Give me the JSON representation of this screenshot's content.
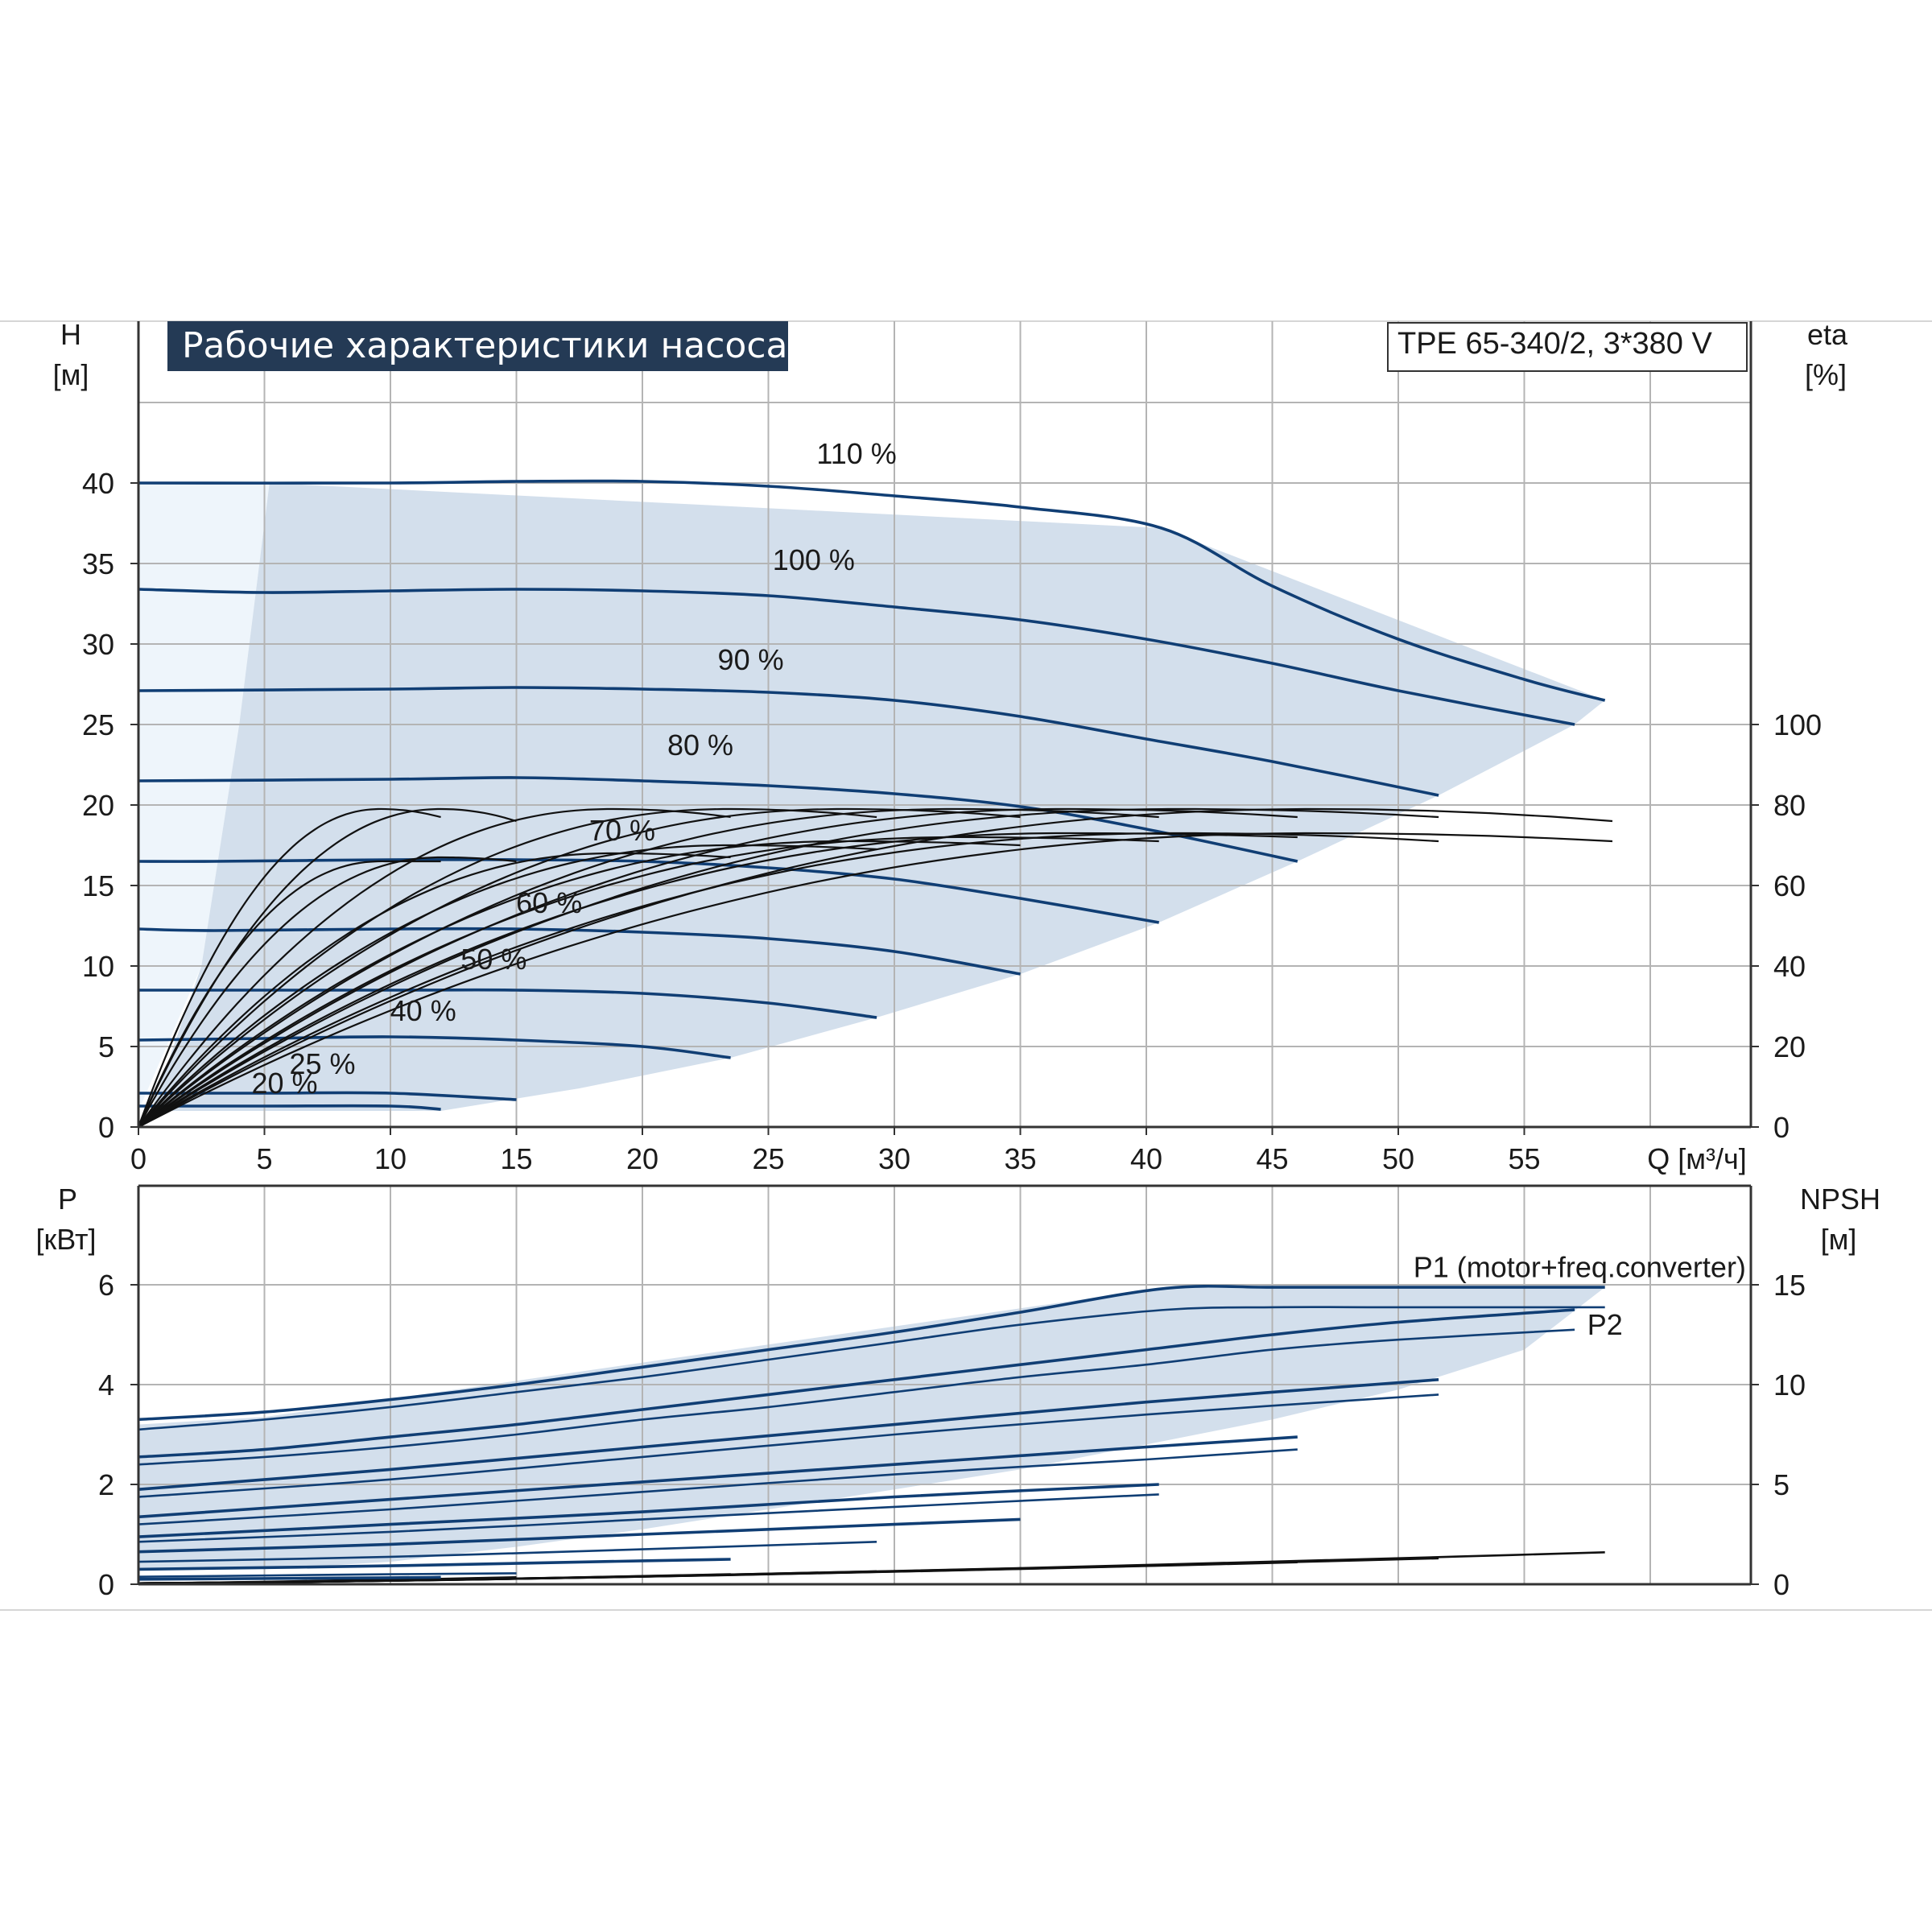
{
  "colors": {
    "curve_blue": "#103e74",
    "area_fill": "#d3dfec",
    "area_fill_light": "#eef5fb",
    "grid": "#b4b4b4",
    "frame": "#333333",
    "eff_black": "#111111"
  },
  "chart_data": [
    {
      "type": "line",
      "title": "Рабочие характеристики насоса",
      "model": "TPE 65-340/2, 3*380 V",
      "xlabel": "Q [м³/ч]",
      "ylabel_left": [
        "H",
        "[м]"
      ],
      "ylabel_right": [
        "eta",
        "[%]"
      ],
      "xlim": [
        0,
        64
      ],
      "ylim_left": [
        0,
        50
      ],
      "ylim_right": [
        0,
        200
      ],
      "x_ticks": [
        "0",
        "5",
        "10",
        "15",
        "20",
        "25",
        "30",
        "35",
        "40",
        "45",
        "50",
        "55"
      ],
      "y_ticks_left": [
        "0",
        "5",
        "10",
        "15",
        "20",
        "25",
        "30",
        "35",
        "40"
      ],
      "y_ticks_right": [
        "0",
        "20",
        "40",
        "60",
        "80",
        "100"
      ],
      "grid": true,
      "operating_area": [
        [
          5.2,
          40
        ],
        [
          40.6,
          37.2
        ],
        [
          58.2,
          26.5
        ],
        [
          57,
          25
        ],
        [
          51.6,
          20.6
        ],
        [
          46,
          16.5
        ],
        [
          40.5,
          12.7
        ],
        [
          35,
          9.5
        ],
        [
          29.3,
          6.8
        ],
        [
          23.5,
          4.3
        ],
        [
          17.5,
          2.4
        ],
        [
          12,
          1
        ],
        [
          0.5,
          1
        ],
        [
          2.5,
          10
        ],
        [
          4,
          25
        ],
        [
          5.2,
          40
        ]
      ],
      "operating_area_low": [
        [
          0,
          40
        ],
        [
          5.2,
          40
        ],
        [
          4,
          25
        ],
        [
          2.5,
          10
        ],
        [
          0,
          1
        ],
        [
          0,
          40
        ]
      ],
      "series": [
        {
          "name": "110 %",
          "label_at": [
            28.5,
            41.2
          ],
          "x": [
            0,
            10,
            15,
            20,
            25,
            30,
            35,
            40.6,
            45,
            50,
            55,
            58.2
          ],
          "y": [
            40,
            40,
            40.1,
            40.1,
            39.8,
            39.2,
            38.5,
            37.2,
            33.6,
            30.3,
            27.8,
            26.5
          ]
        },
        {
          "name": "100 %",
          "label_at": [
            26.8,
            34.6
          ],
          "x": [
            0,
            5,
            10,
            15,
            20,
            25,
            30,
            35,
            40,
            45,
            50,
            57
          ],
          "y": [
            33.4,
            33.2,
            33.3,
            33.4,
            33.3,
            33,
            32.3,
            31.5,
            30.3,
            28.8,
            27.1,
            25
          ]
        },
        {
          "name": "90 %",
          "label_at": [
            24.3,
            28.4
          ],
          "x": [
            0,
            10,
            15,
            20,
            25,
            30,
            35,
            40,
            45,
            51.6
          ],
          "y": [
            27.1,
            27.2,
            27.3,
            27.2,
            27,
            26.5,
            25.5,
            24.1,
            22.7,
            20.6
          ]
        },
        {
          "name": "80 %",
          "label_at": [
            22.3,
            23.1
          ],
          "x": [
            0,
            10,
            15,
            20,
            25,
            30,
            35,
            40,
            46
          ],
          "y": [
            21.5,
            21.6,
            21.7,
            21.5,
            21.2,
            20.7,
            19.9,
            18.5,
            16.5
          ]
        },
        {
          "name": "70 %",
          "label_at": [
            19.2,
            17.8
          ],
          "x": [
            0,
            3,
            10,
            15,
            20,
            25,
            30,
            35,
            40.5
          ],
          "y": [
            16.5,
            16.5,
            16.6,
            16.6,
            16.5,
            16.1,
            15.4,
            14.2,
            12.7
          ]
        },
        {
          "name": "60 %",
          "label_at": [
            16.3,
            13.3
          ],
          "x": [
            0,
            3,
            10,
            15,
            20,
            25,
            30,
            35
          ],
          "y": [
            12.3,
            12.2,
            12.3,
            12.3,
            12.1,
            11.7,
            10.9,
            9.5
          ]
        },
        {
          "name": "50 %",
          "label_at": [
            14.1,
            9.8
          ],
          "x": [
            0,
            10,
            15,
            20,
            25,
            29.3
          ],
          "y": [
            8.5,
            8.5,
            8.5,
            8.3,
            7.7,
            6.8
          ]
        },
        {
          "name": "40 %",
          "label_at": [
            11.3,
            6.6
          ],
          "x": [
            0,
            5,
            10,
            15,
            20,
            23.5
          ],
          "y": [
            5.4,
            5.5,
            5.6,
            5.4,
            5,
            4.3
          ]
        },
        {
          "name": "25 %",
          "label_at": [
            7.3,
            3.3
          ],
          "x": [
            0,
            5,
            10,
            15
          ],
          "y": [
            2.1,
            2.1,
            2.1,
            1.7
          ]
        },
        {
          "name": "20 %",
          "label_at": [
            5.8,
            2.1
          ],
          "x": [
            0,
            5,
            10,
            12
          ],
          "y": [
            1.3,
            1.3,
            1.3,
            1.1
          ]
        }
      ],
      "efficiency_curves": [
        {
          "q_max": 58.5,
          "peak": 73,
          "end": 71
        },
        {
          "q_max": 58.5,
          "peak": 79,
          "end": 76
        },
        {
          "q_max": 51.6,
          "peak": 79,
          "end": 77
        },
        {
          "q_max": 51.6,
          "peak": 73,
          "end": 71
        },
        {
          "q_max": 46,
          "peak": 79,
          "end": 77
        },
        {
          "q_max": 46,
          "peak": 73,
          "end": 72
        },
        {
          "q_max": 40.5,
          "peak": 79,
          "end": 77
        },
        {
          "q_max": 40.5,
          "peak": 72,
          "end": 71
        },
        {
          "q_max": 35,
          "peak": 79,
          "end": 77
        },
        {
          "q_max": 35,
          "peak": 71,
          "end": 70
        },
        {
          "q_max": 29.3,
          "peak": 79,
          "end": 77
        },
        {
          "q_max": 29.3,
          "peak": 70,
          "end": 69
        },
        {
          "q_max": 23.5,
          "peak": 79,
          "end": 77
        },
        {
          "q_max": 23.5,
          "peak": 68,
          "end": 67
        },
        {
          "q_max": 15,
          "peak": 79,
          "end": 76
        },
        {
          "q_max": 15,
          "peak": 67,
          "end": 66
        },
        {
          "q_max": 12,
          "peak": 79,
          "end": 77
        },
        {
          "q_max": 12,
          "peak": 66,
          "end": 66
        }
      ]
    },
    {
      "type": "line",
      "xlabel": "",
      "ylabel_left": [
        "P",
        "[кВт]"
      ],
      "ylabel_right": [
        "NPSH",
        "[м]"
      ],
      "xlim": [
        0,
        64
      ],
      "ylim_left": [
        0,
        7.5
      ],
      "ylim_right": [
        0,
        18.75
      ],
      "y_ticks_left": [
        "0",
        "2",
        "4",
        "6"
      ],
      "y_ticks_right": [
        "0",
        "5",
        "10",
        "15"
      ],
      "grid": true,
      "operating_area": [
        [
          5,
          3.35
        ],
        [
          40.8,
          5.95
        ],
        [
          58.2,
          5.95
        ],
        [
          55,
          4.7
        ],
        [
          50,
          3.9
        ],
        [
          45,
          3.3
        ],
        [
          40,
          2.8
        ],
        [
          35,
          2.3
        ],
        [
          30,
          1.9
        ],
        [
          25,
          1.5
        ],
        [
          20,
          1.1
        ],
        [
          15,
          0.75
        ],
        [
          10,
          0.45
        ],
        [
          5,
          0.3
        ],
        [
          0,
          0.3
        ],
        [
          0,
          3.2
        ],
        [
          5,
          3.35
        ]
      ],
      "series": [
        {
          "name": "P1 (motor+freq.converter)",
          "label_at": [
            50.6,
            6.15
          ],
          "x": [
            0,
            5,
            10,
            15,
            20,
            25,
            30,
            35,
            40.8,
            45,
            50,
            58.2
          ],
          "y": [
            3.3,
            3.45,
            3.7,
            4,
            4.35,
            4.7,
            5.05,
            5.45,
            5.93,
            5.95,
            5.95,
            5.95
          ]
        },
        {
          "name": "",
          "x": [
            0,
            5,
            10,
            15,
            20,
            25,
            30,
            35,
            40.8,
            45,
            50,
            58.2
          ],
          "y": [
            3.1,
            3.3,
            3.55,
            3.85,
            4.15,
            4.5,
            4.85,
            5.2,
            5.5,
            5.55,
            5.55,
            5.55
          ]
        },
        {
          "name": "P2",
          "label_at": [
            57.5,
            5.0
          ],
          "x": [
            0,
            5,
            10,
            15,
            20,
            25,
            30,
            35,
            40,
            45,
            50,
            57
          ],
          "y": [
            2.55,
            2.7,
            2.95,
            3.2,
            3.5,
            3.8,
            4.1,
            4.4,
            4.7,
            5,
            5.25,
            5.5
          ]
        },
        {
          "name": "",
          "x": [
            0,
            5,
            10,
            15,
            20,
            25,
            30,
            35,
            40,
            45,
            50,
            57
          ],
          "y": [
            2.4,
            2.55,
            2.75,
            3,
            3.3,
            3.55,
            3.85,
            4.15,
            4.4,
            4.7,
            4.9,
            5.1
          ]
        },
        {
          "name": "",
          "x": [
            0,
            10,
            20,
            30,
            40,
            51.6
          ],
          "y": [
            1.9,
            2.3,
            2.75,
            3.2,
            3.65,
            4.1
          ]
        },
        {
          "name": "",
          "x": [
            0,
            10,
            20,
            30,
            40,
            51.6
          ],
          "y": [
            1.75,
            2.1,
            2.55,
            3,
            3.4,
            3.8
          ]
        },
        {
          "name": "",
          "x": [
            0,
            10,
            20,
            30,
            40,
            46
          ],
          "y": [
            1.35,
            1.7,
            2.05,
            2.4,
            2.75,
            2.95
          ]
        },
        {
          "name": "",
          "x": [
            0,
            10,
            20,
            30,
            40,
            46
          ],
          "y": [
            1.2,
            1.5,
            1.85,
            2.2,
            2.5,
            2.7
          ]
        },
        {
          "name": "",
          "x": [
            0,
            10,
            20,
            30,
            40.5
          ],
          "y": [
            0.95,
            1.2,
            1.45,
            1.75,
            2.0
          ]
        },
        {
          "name": "",
          "x": [
            0,
            10,
            20,
            30,
            40.5
          ],
          "y": [
            0.85,
            1.05,
            1.3,
            1.55,
            1.8
          ]
        },
        {
          "name": "",
          "x": [
            0,
            10,
            20,
            30,
            35
          ],
          "y": [
            0.65,
            0.8,
            1.0,
            1.2,
            1.3
          ]
        },
        {
          "name": "",
          "x": [
            0,
            10,
            20,
            29.3
          ],
          "y": [
            0.45,
            0.55,
            0.7,
            0.85
          ]
        },
        {
          "name": "",
          "x": [
            0,
            10,
            20,
            23.5
          ],
          "y": [
            0.3,
            0.37,
            0.47,
            0.5
          ]
        },
        {
          "name": "",
          "x": [
            0,
            10,
            15
          ],
          "y": [
            0.15,
            0.2,
            0.22
          ]
        },
        {
          "name": "",
          "x": [
            0,
            10,
            12
          ],
          "y": [
            0.1,
            0.13,
            0.14
          ]
        }
      ],
      "npsh_curves": [
        {
          "q_max": 58.2,
          "end": 1.6
        },
        {
          "q_max": 51.6,
          "end": 1.3
        },
        {
          "q_max": 46,
          "end": 1.1
        },
        {
          "q_max": 40.5,
          "end": 0.95
        },
        {
          "q_max": 35,
          "end": 0.8
        },
        {
          "q_max": 29.3,
          "end": 0.65
        },
        {
          "q_max": 23.5,
          "end": 0.5
        },
        {
          "q_max": 15,
          "end": 0.35
        },
        {
          "q_max": 12,
          "end": 0.3
        }
      ]
    }
  ]
}
